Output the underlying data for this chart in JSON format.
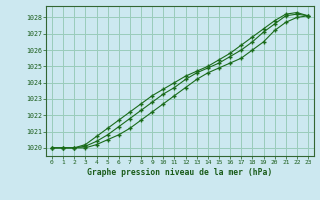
{
  "title": "Graphe pression niveau de la mer (hPa)",
  "bg_color": "#cce8f0",
  "grid_color": "#99ccbb",
  "line_color": "#1a6b1a",
  "xlim": [
    -0.5,
    23.5
  ],
  "ylim": [
    1019.5,
    1028.7
  ],
  "xticks": [
    0,
    1,
    2,
    3,
    4,
    5,
    6,
    7,
    8,
    9,
    10,
    11,
    12,
    13,
    14,
    15,
    16,
    17,
    18,
    19,
    20,
    21,
    22,
    23
  ],
  "yticks": [
    1020,
    1021,
    1022,
    1023,
    1024,
    1025,
    1026,
    1027,
    1028
  ],
  "series": [
    [
      1020.0,
      1020.0,
      1020.0,
      1020.0,
      1020.2,
      1020.5,
      1020.8,
      1021.2,
      1021.7,
      1022.2,
      1022.7,
      1023.2,
      1023.7,
      1024.2,
      1024.6,
      1024.9,
      1025.2,
      1025.5,
      1026.0,
      1026.5,
      1027.2,
      1027.7,
      1028.0,
      1028.1
    ],
    [
      1020.0,
      1020.0,
      1020.0,
      1020.1,
      1020.4,
      1020.8,
      1021.3,
      1021.8,
      1022.3,
      1022.8,
      1023.3,
      1023.7,
      1024.2,
      1024.6,
      1024.9,
      1025.2,
      1025.6,
      1026.0,
      1026.5,
      1027.1,
      1027.6,
      1028.1,
      1028.2,
      1028.1
    ],
    [
      1020.0,
      1020.0,
      1020.0,
      1020.2,
      1020.7,
      1021.2,
      1021.7,
      1022.2,
      1022.7,
      1023.2,
      1023.6,
      1024.0,
      1024.4,
      1024.7,
      1025.0,
      1025.4,
      1025.8,
      1026.3,
      1026.8,
      1027.3,
      1027.8,
      1028.2,
      1028.3,
      1028.1
    ]
  ]
}
